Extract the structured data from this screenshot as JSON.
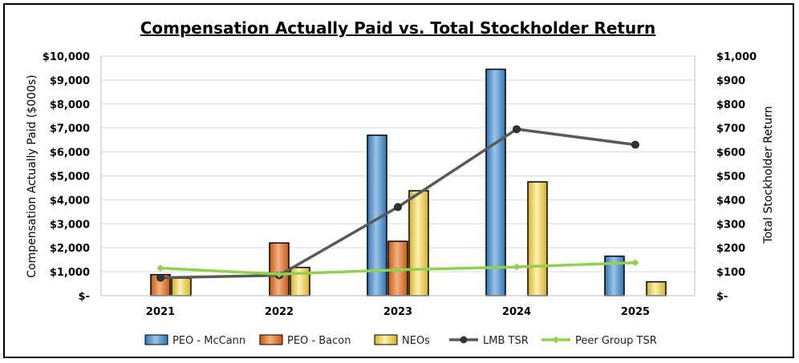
{
  "chart_data": {
    "type": "bar",
    "title": "Compensation Actually Paid vs. Total Stockholder Return",
    "ylabel": "Compensation Actually Paid ($000s)",
    "y2label": "Total Stockholder Return",
    "ylim": [
      0,
      10000
    ],
    "y2lim": [
      0,
      1000
    ],
    "yticks": [
      "$-",
      "$1,000",
      "$2,000",
      "$3,000",
      "$4,000",
      "$5,000",
      "$6,000",
      "$7,000",
      "$8,000",
      "$9,000",
      "$10,000"
    ],
    "y2ticks": [
      "$-",
      "$100",
      "$200",
      "$300",
      "$400",
      "$500",
      "$600",
      "$700",
      "$800",
      "$900",
      "$1,000"
    ],
    "categories": [
      "2021",
      "2022",
      "2023",
      "2024",
      "2025"
    ],
    "bar_series": [
      {
        "name": "PEO - McCann",
        "color": "#5B9BD5",
        "values": [
          null,
          null,
          6700,
          9450,
          1650
        ]
      },
      {
        "name": "PEO - Bacon",
        "color": "#ED7D31",
        "values": [
          880,
          2200,
          2270,
          null,
          null
        ]
      },
      {
        "name": "NEOs",
        "color": "#FFD966",
        "values": [
          730,
          1180,
          4380,
          4750,
          580
        ]
      }
    ],
    "line_series": [
      {
        "name": "LMB TSR",
        "color": "#595959",
        "values": [
          75,
          85,
          370,
          695,
          630
        ]
      },
      {
        "name": "Peer Group TSR",
        "color": "#92D050",
        "values": [
          115,
          90,
          108,
          120,
          138
        ]
      }
    ],
    "grid": true,
    "legend": "bottom"
  }
}
